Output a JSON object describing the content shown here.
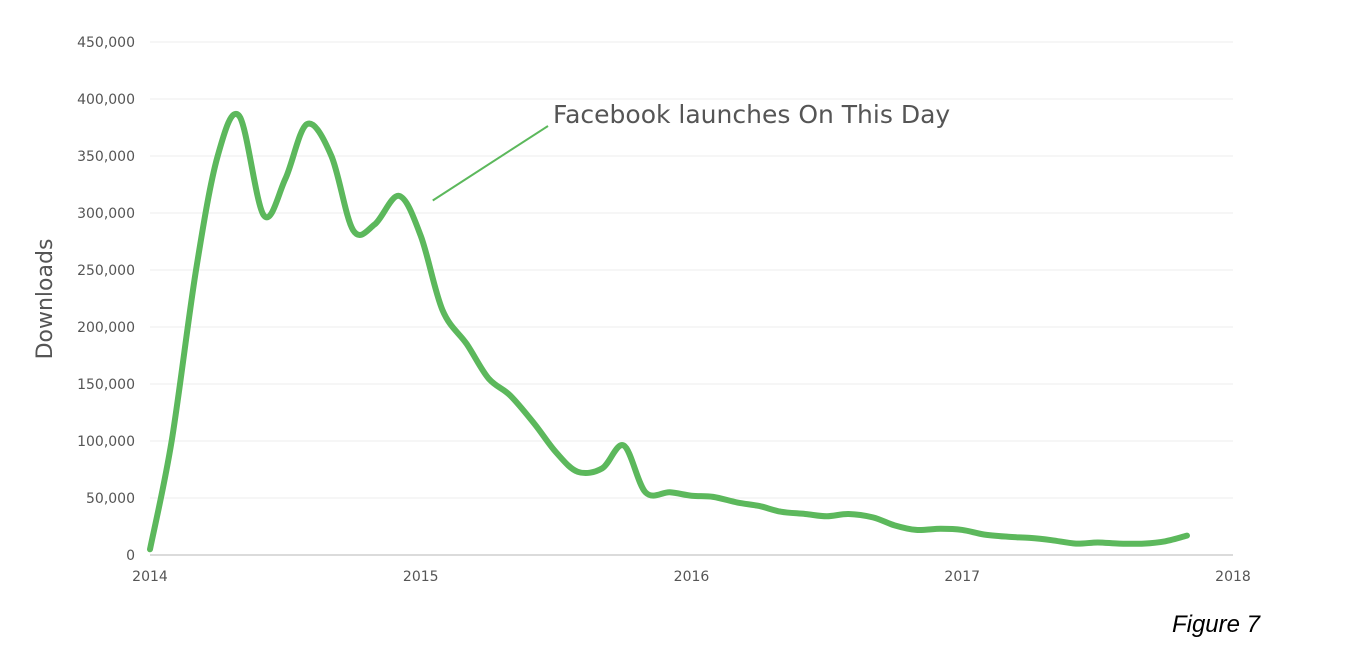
{
  "chart_data": {
    "type": "line",
    "title": "",
    "xlabel": "",
    "ylabel": "Downloads",
    "xlim": [
      2014,
      2018
    ],
    "ylim": [
      0,
      450000
    ],
    "x_ticks": [
      "2014",
      "2015",
      "2016",
      "2017",
      "2018"
    ],
    "y_ticks": [
      "0",
      "50,000",
      "100,000",
      "150,000",
      "200,000",
      "250,000",
      "300,000",
      "350,000",
      "400,000",
      "450,000"
    ],
    "grid": true,
    "legend": "none",
    "line_color": "#5cb85c",
    "series": [
      {
        "x": [
          2014.0,
          2014.08,
          2014.17,
          2014.25,
          2014.33,
          2014.42,
          2014.5,
          2014.58,
          2014.67,
          2014.75,
          2014.83,
          2014.92,
          2015.0,
          2015.08,
          2015.17,
          2015.25,
          2015.33,
          2015.42,
          2015.5,
          2015.58,
          2015.67,
          2015.75,
          2015.83,
          2015.92,
          2016.0,
          2016.08,
          2016.17,
          2016.25,
          2016.33,
          2016.42,
          2016.5,
          2016.58,
          2016.67,
          2016.75,
          2016.83,
          2016.92,
          2017.0,
          2017.08,
          2017.17,
          2017.25,
          2017.33,
          2017.42,
          2017.5,
          2017.58,
          2017.67,
          2017.75,
          2017.83
        ],
        "y": [
          5000,
          100000,
          250000,
          350000,
          385000,
          298000,
          330000,
          378000,
          350000,
          285000,
          290000,
          315000,
          280000,
          215000,
          185000,
          155000,
          140000,
          115000,
          90000,
          73000,
          76000,
          96000,
          55000,
          55000,
          52000,
          51000,
          46000,
          43000,
          38000,
          36000,
          34000,
          36000,
          33000,
          26000,
          22000,
          23000,
          22000,
          18000,
          16000,
          15000,
          13000,
          10000,
          11000,
          10000,
          10000,
          12000,
          17000
        ]
      }
    ],
    "annotations": [
      {
        "text": "Facebook launches On This Day",
        "x": 2015.0,
        "y": 318000
      }
    ]
  },
  "caption": "Figure 7"
}
